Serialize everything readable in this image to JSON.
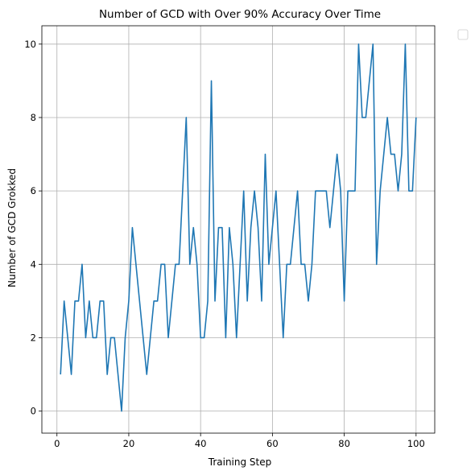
{
  "chart_data": {
    "type": "line",
    "title": "Number of GCD with Over 90% Accuracy Over Time",
    "xlabel": "Training Step",
    "ylabel": "Number of GCD Grokked",
    "xlim": [
      -4.2,
      105.2
    ],
    "ylim": [
      -0.6,
      10.5
    ],
    "xticks": [
      0,
      20,
      40,
      60,
      80,
      100
    ],
    "yticks": [
      0,
      2,
      4,
      6,
      8,
      10
    ],
    "grid": true,
    "legend": "outside-top-right (empty)",
    "series": [
      {
        "color": "#1f77b4",
        "x": [
          1,
          2,
          3,
          4,
          5,
          6,
          7,
          8,
          9,
          10,
          11,
          12,
          13,
          14,
          15,
          16,
          17,
          18,
          19,
          20,
          21,
          22,
          23,
          24,
          25,
          26,
          27,
          28,
          29,
          30,
          31,
          32,
          33,
          34,
          35,
          36,
          37,
          38,
          39,
          40,
          41,
          42,
          43,
          44,
          45,
          46,
          47,
          48,
          49,
          50,
          51,
          52,
          53,
          54,
          55,
          56,
          57,
          58,
          59,
          60,
          61,
          62,
          63,
          64,
          65,
          66,
          67,
          68,
          69,
          70,
          71,
          72,
          73,
          74,
          75,
          76,
          77,
          78,
          79,
          80,
          81,
          82,
          83,
          84,
          85,
          86,
          87,
          88,
          89,
          90,
          91,
          92,
          93,
          94,
          95,
          96,
          97,
          98,
          99,
          100
        ],
        "y": [
          1,
          3,
          2,
          1,
          3,
          3,
          4,
          2,
          3,
          2,
          2,
          3,
          3,
          1,
          2,
          2,
          1,
          0,
          2,
          3,
          5,
          4,
          3,
          2,
          1,
          2,
          3,
          3,
          4,
          4,
          2,
          3,
          4,
          4,
          6,
          8,
          4,
          5,
          4,
          2,
          2,
          3,
          9,
          3,
          5,
          5,
          2,
          5,
          4,
          2,
          4,
          6,
          3,
          5,
          6,
          5,
          3,
          7,
          4,
          5,
          6,
          4,
          2,
          4,
          4,
          5,
          6,
          4,
          4,
          3,
          4,
          6,
          6,
          6,
          6,
          5,
          6,
          7,
          6,
          3,
          6,
          6,
          6,
          10,
          8,
          8,
          9,
          10,
          4,
          6,
          7,
          8,
          7,
          7,
          6,
          7,
          10,
          6,
          6,
          8
        ]
      }
    ]
  }
}
